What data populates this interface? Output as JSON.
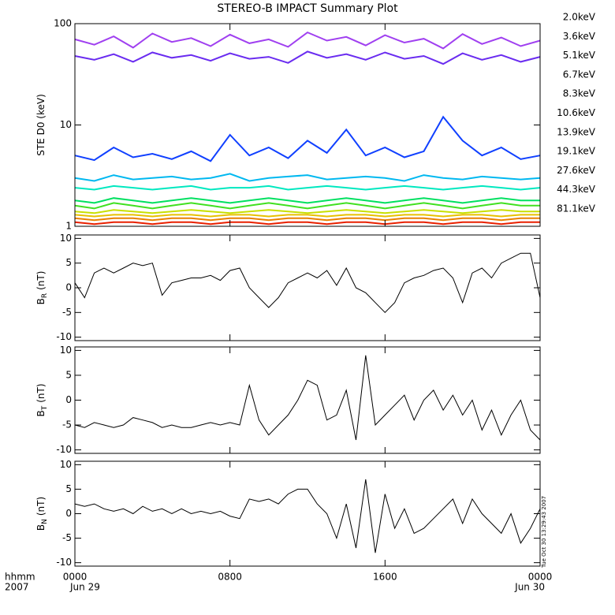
{
  "chart_data": [
    {
      "type": "line",
      "title": "STEREO-B IMPACT Summary Plot",
      "ylabel": "STE D0 (keV)",
      "log_y": true,
      "xlim": [
        0,
        24
      ],
      "ylim": [
        1,
        100
      ],
      "yticks": [
        1,
        10,
        100
      ],
      "x": [
        0,
        1,
        2,
        3,
        4,
        5,
        6,
        7,
        8,
        9,
        10,
        11,
        12,
        13,
        14,
        15,
        16,
        17,
        18,
        19,
        20,
        21,
        22,
        23,
        24
      ],
      "series": [
        {
          "name": "2.0keV",
          "color": "#a040f0",
          "values": [
            70,
            62,
            75,
            58,
            80,
            66,
            72,
            60,
            78,
            64,
            70,
            59,
            82,
            68,
            74,
            61,
            77,
            65,
            71,
            57,
            79,
            63,
            73,
            60,
            68
          ]
        },
        {
          "name": "3.6keV",
          "color": "#6a2cf0",
          "values": [
            48,
            44,
            50,
            42,
            52,
            46,
            49,
            43,
            51,
            45,
            47,
            41,
            53,
            46,
            50,
            44,
            52,
            45,
            48,
            40,
            51,
            44,
            49,
            42,
            47
          ]
        },
        {
          "name": "5.1keV",
          "color": "#1040ff",
          "values": [
            5,
            4.5,
            6,
            4.8,
            5.2,
            4.6,
            5.5,
            4.4,
            8,
            5,
            6,
            4.7,
            7,
            5.3,
            9,
            5,
            6,
            4.8,
            5.5,
            12,
            7,
            5,
            6,
            4.6,
            5
          ]
        },
        {
          "name": "6.7keV",
          "color": "#00b8f0",
          "values": [
            3,
            2.8,
            3.2,
            2.9,
            3,
            3.1,
            2.9,
            3,
            3.3,
            2.8,
            3,
            3.1,
            3.2,
            2.9,
            3,
            3.1,
            3,
            2.8,
            3.2,
            3,
            2.9,
            3.1,
            3,
            2.9,
            3
          ]
        },
        {
          "name": "8.3keV",
          "color": "#00e8c0",
          "values": [
            2.4,
            2.3,
            2.5,
            2.4,
            2.3,
            2.4,
            2.5,
            2.3,
            2.4,
            2.4,
            2.5,
            2.3,
            2.4,
            2.5,
            2.4,
            2.3,
            2.4,
            2.5,
            2.4,
            2.3,
            2.4,
            2.5,
            2.4,
            2.3,
            2.4
          ]
        },
        {
          "name": "10.6keV",
          "color": "#00e060",
          "values": [
            1.8,
            1.7,
            1.9,
            1.8,
            1.7,
            1.8,
            1.9,
            1.8,
            1.7,
            1.8,
            1.9,
            1.8,
            1.7,
            1.8,
            1.9,
            1.8,
            1.7,
            1.8,
            1.9,
            1.8,
            1.7,
            1.8,
            1.9,
            1.8,
            1.8
          ]
        },
        {
          "name": "13.9keV",
          "color": "#40e020",
          "values": [
            1.6,
            1.5,
            1.7,
            1.6,
            1.5,
            1.6,
            1.7,
            1.6,
            1.5,
            1.6,
            1.7,
            1.6,
            1.5,
            1.6,
            1.7,
            1.6,
            1.5,
            1.6,
            1.7,
            1.6,
            1.5,
            1.6,
            1.7,
            1.6,
            1.6
          ]
        },
        {
          "name": "19.1keV",
          "color": "#c8e000",
          "values": [
            1.4,
            1.35,
            1.45,
            1.4,
            1.35,
            1.4,
            1.45,
            1.4,
            1.35,
            1.4,
            1.45,
            1.4,
            1.35,
            1.4,
            1.45,
            1.4,
            1.35,
            1.4,
            1.45,
            1.4,
            1.35,
            1.4,
            1.45,
            1.4,
            1.4
          ]
        },
        {
          "name": "27.6keV",
          "color": "#e8c000",
          "values": [
            1.3,
            1.25,
            1.3,
            1.3,
            1.25,
            1.3,
            1.3,
            1.25,
            1.3,
            1.3,
            1.25,
            1.3,
            1.3,
            1.25,
            1.3,
            1.3,
            1.25,
            1.3,
            1.3,
            1.25,
            1.3,
            1.3,
            1.25,
            1.3,
            1.3
          ]
        },
        {
          "name": "44.3keV",
          "color": "#e88000",
          "values": [
            1.2,
            1.15,
            1.2,
            1.2,
            1.15,
            1.2,
            1.2,
            1.15,
            1.2,
            1.2,
            1.15,
            1.2,
            1.2,
            1.15,
            1.2,
            1.2,
            1.15,
            1.2,
            1.2,
            1.15,
            1.2,
            1.2,
            1.15,
            1.2,
            1.2
          ]
        },
        {
          "name": "81.1keV",
          "color": "#e82000",
          "values": [
            1.1,
            1.05,
            1.1,
            1.1,
            1.05,
            1.1,
            1.1,
            1.05,
            1.1,
            1.1,
            1.05,
            1.1,
            1.1,
            1.05,
            1.1,
            1.1,
            1.05,
            1.1,
            1.1,
            1.05,
            1.1,
            1.1,
            1.05,
            1.1,
            1.1
          ]
        }
      ]
    },
    {
      "type": "line",
      "ylabel": "B",
      "ylabel_sub": "R",
      "ylabel_unit": "(nT)",
      "xlim": [
        0,
        24
      ],
      "ylim": [
        -10.7,
        10.7
      ],
      "yticks": [
        -10,
        -5,
        0,
        5,
        10
      ],
      "x": [
        0,
        0.5,
        1,
        1.5,
        2,
        2.5,
        3,
        3.5,
        4,
        4.5,
        5,
        5.5,
        6,
        6.5,
        7,
        7.5,
        8,
        8.5,
        9,
        9.5,
        10,
        10.5,
        11,
        11.5,
        12,
        12.5,
        13,
        13.5,
        14,
        14.5,
        15,
        15.5,
        16,
        16.5,
        17,
        17.5,
        18,
        18.5,
        19,
        19.5,
        20,
        20.5,
        21,
        21.5,
        22,
        22.5,
        23,
        23.5,
        24
      ],
      "series": [
        {
          "color": "#000000",
          "values": [
            1,
            -2,
            3,
            4,
            3,
            4,
            5,
            4.5,
            5,
            -1.5,
            1,
            1.5,
            2,
            2,
            2.5,
            1.5,
            3.5,
            4,
            0,
            -2,
            -4,
            -2,
            1,
            2,
            3,
            2,
            3.5,
            0.5,
            4,
            0,
            -1,
            -3,
            -5,
            -3,
            1,
            2,
            2.5,
            3.5,
            4,
            2,
            -3,
            3,
            4,
            2,
            5,
            6,
            7,
            7,
            -2
          ]
        }
      ]
    },
    {
      "type": "line",
      "ylabel": "B",
      "ylabel_sub": "T",
      "ylabel_unit": "(nT)",
      "xlim": [
        0,
        24
      ],
      "ylim": [
        -10.7,
        10.7
      ],
      "yticks": [
        -10,
        -5,
        0,
        5,
        10
      ],
      "x": [
        0,
        0.5,
        1,
        1.5,
        2,
        2.5,
        3,
        3.5,
        4,
        4.5,
        5,
        5.5,
        6,
        6.5,
        7,
        7.5,
        8,
        8.5,
        9,
        9.5,
        10,
        10.5,
        11,
        11.5,
        12,
        12.5,
        13,
        13.5,
        14,
        14.5,
        15,
        15.5,
        16,
        16.5,
        17,
        17.5,
        18,
        18.5,
        19,
        19.5,
        20,
        20.5,
        21,
        21.5,
        22,
        22.5,
        23,
        23.5,
        24
      ],
      "series": [
        {
          "color": "#000000",
          "values": [
            -5,
            -5.5,
            -4.5,
            -5,
            -5.5,
            -5,
            -3.5,
            -4,
            -4.5,
            -5.5,
            -5,
            -5.5,
            -5.5,
            -5,
            -4.5,
            -5,
            -4.5,
            -5,
            3,
            -4,
            -7,
            -5,
            -3,
            0,
            4,
            3,
            -4,
            -3,
            2,
            -8,
            9,
            -5,
            -3,
            -1,
            1,
            -4,
            0,
            2,
            -2,
            1,
            -3,
            0,
            -6,
            -2,
            -7,
            -3,
            0,
            -6,
            -8
          ]
        }
      ]
    },
    {
      "type": "line",
      "ylabel": "B",
      "ylabel_sub": "N",
      "ylabel_unit": "(nT)",
      "annotation": "Tue Oct 30 13:29:43 2007",
      "xlim": [
        0,
        24
      ],
      "ylim": [
        -10.7,
        10.7
      ],
      "yticks": [
        -10,
        -5,
        0,
        5,
        10
      ],
      "xticks": [
        {
          "value": 0,
          "label": "0000"
        },
        {
          "value": 8,
          "label": "0800"
        },
        {
          "value": 16,
          "label": "1600"
        },
        {
          "value": 24,
          "label": "0000"
        }
      ],
      "date_labels": [
        "Jun 29",
        "Jun 30"
      ],
      "corner_labels": [
        "hhmm",
        "2007"
      ],
      "x": [
        0,
        0.5,
        1,
        1.5,
        2,
        2.5,
        3,
        3.5,
        4,
        4.5,
        5,
        5.5,
        6,
        6.5,
        7,
        7.5,
        8,
        8.5,
        9,
        9.5,
        10,
        10.5,
        11,
        11.5,
        12,
        12.5,
        13,
        13.5,
        14,
        14.5,
        15,
        15.5,
        16,
        16.5,
        17,
        17.5,
        18,
        18.5,
        19,
        19.5,
        20,
        20.5,
        21,
        21.5,
        22,
        22.5,
        23,
        23.5,
        24
      ],
      "series": [
        {
          "color": "#000000",
          "values": [
            2,
            1.5,
            2,
            1,
            0.5,
            1,
            0,
            1.5,
            0.5,
            1,
            0,
            1,
            0,
            0.5,
            0,
            0.5,
            -0.5,
            -1,
            3,
            2.5,
            3,
            2,
            4,
            5,
            5,
            2,
            0,
            -5,
            2,
            -7,
            7,
            -8,
            4,
            -3,
            1,
            -4,
            -3,
            -1,
            1,
            3,
            -2,
            3,
            0,
            -2,
            -4,
            0,
            -6,
            -3,
            1
          ]
        }
      ]
    }
  ]
}
